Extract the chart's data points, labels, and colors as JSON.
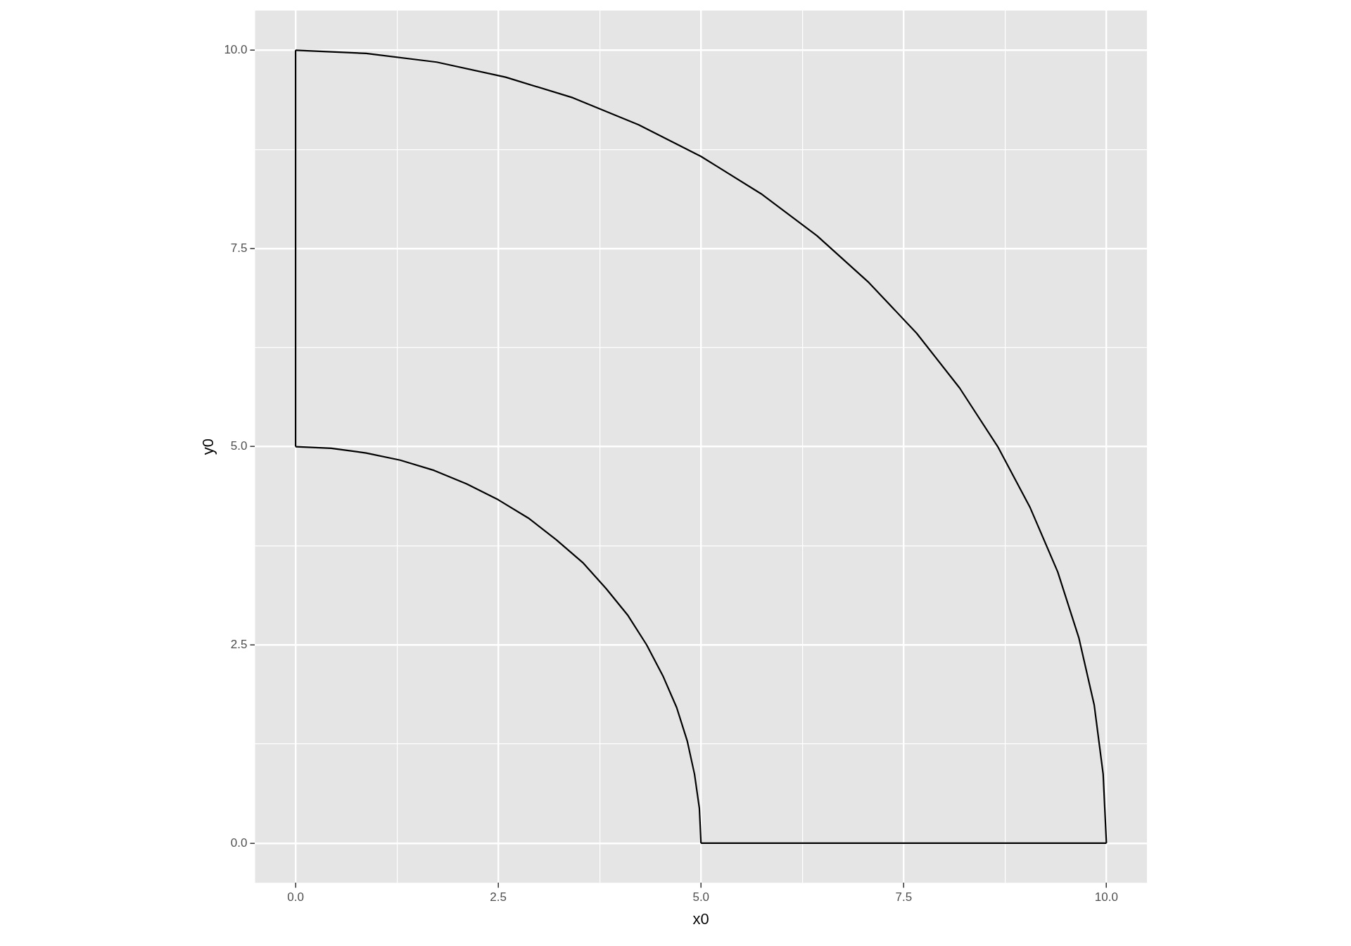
{
  "chart_data": {
    "type": "line",
    "xlabel": "x0",
    "ylabel": "y0",
    "grid": true,
    "marker": "none",
    "line_style": "solid",
    "xlim": [
      -0.5,
      10.5
    ],
    "ylim": [
      -0.5,
      10.5
    ],
    "xticks": [
      {
        "value": 0,
        "label": "0.0"
      },
      {
        "value": 1.25,
        "label": null
      },
      {
        "value": 2.5,
        "label": "2.5"
      },
      {
        "value": 3.75,
        "label": null
      },
      {
        "value": 5,
        "label": "5.0"
      },
      {
        "value": 6.25,
        "label": null
      },
      {
        "value": 7.5,
        "label": "7.5"
      },
      {
        "value": 8.75,
        "label": null
      },
      {
        "value": 10,
        "label": "10.0"
      }
    ],
    "yticks": [
      {
        "value": 0,
        "label": "0.0"
      },
      {
        "value": 1.25,
        "label": null
      },
      {
        "value": 2.5,
        "label": "2.5"
      },
      {
        "value": 3.75,
        "label": null
      },
      {
        "value": 5,
        "label": "5.0"
      },
      {
        "value": 6.25,
        "label": null
      },
      {
        "value": 7.5,
        "label": "7.5"
      },
      {
        "value": 8.75,
        "label": null
      },
      {
        "value": 10,
        "label": "10.0"
      }
    ],
    "series": [
      {
        "color": "#000000",
        "x": [
          0,
          0.87,
          1.74,
          2.59,
          3.42,
          4.23,
          5,
          5.74,
          6.43,
          7.07,
          7.66,
          8.19,
          8.66,
          9.06,
          9.4,
          9.66,
          9.85,
          9.96,
          10
        ],
        "values": [
          10,
          9.96,
          9.85,
          9.66,
          9.4,
          9.06,
          8.66,
          8.19,
          7.66,
          7.07,
          6.43,
          5.74,
          5,
          4.23,
          3.42,
          2.59,
          1.74,
          0.87,
          0
        ]
      },
      {
        "color": "#000000",
        "x": [
          5,
          10
        ],
        "values": [
          0,
          0
        ]
      },
      {
        "color": "#000000",
        "x": [
          0,
          0.44,
          0.87,
          1.29,
          1.71,
          2.11,
          2.5,
          2.87,
          3.21,
          3.54,
          3.83,
          4.1,
          4.33,
          4.53,
          4.7,
          4.83,
          4.92,
          4.98,
          5
        ],
        "values": [
          5,
          4.98,
          4.92,
          4.83,
          4.7,
          4.53,
          4.33,
          4.1,
          3.83,
          3.54,
          3.21,
          2.87,
          2.5,
          2.11,
          1.71,
          1.29,
          0.87,
          0.44,
          0
        ]
      },
      {
        "color": "#000000",
        "x": [
          0,
          0
        ],
        "values": [
          5,
          10
        ]
      }
    ]
  }
}
